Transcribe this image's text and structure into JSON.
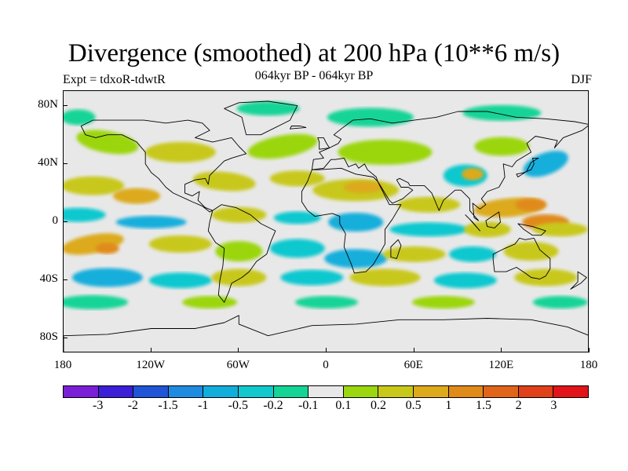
{
  "title": "Divergence (smoothed) at 200 hPa (10**6 m/s)",
  "experiment": "Expt = tdxoR-tdwtR",
  "period": "064kyr BP - 064kyr BP",
  "season": "DJF",
  "map": {
    "projection": "cylindrical equidistant",
    "lon_range": [
      -180,
      180
    ],
    "lat_range": [
      -90,
      90
    ],
    "lat_ticks": [
      {
        "value": 80,
        "label": "80N"
      },
      {
        "value": 40,
        "label": "40N"
      },
      {
        "value": 0,
        "label": "0"
      },
      {
        "value": -40,
        "label": "40S"
      },
      {
        "value": -80,
        "label": "80S"
      }
    ],
    "lon_ticks": [
      {
        "value": -180,
        "label": "180"
      },
      {
        "value": -120,
        "label": "120W"
      },
      {
        "value": -60,
        "label": "60W"
      },
      {
        "value": 0,
        "label": "0"
      },
      {
        "value": 60,
        "label": "60E"
      },
      {
        "value": 120,
        "label": "120E"
      },
      {
        "value": 180,
        "label": "180"
      }
    ],
    "background_color": "#e8e8e8",
    "coastline_color": "#000000"
  },
  "colorbar": {
    "colors": [
      "#7b1fd6",
      "#3b1fd6",
      "#1f55d6",
      "#1f8be0",
      "#12aedb",
      "#11c8cf",
      "#14d496",
      "#e8e8e8",
      "#9bd60e",
      "#c8c81a",
      "#dcaa1a",
      "#e08a1a",
      "#e0651a",
      "#e0401a",
      "#e0141a"
    ],
    "labels": [
      "-3",
      "-2",
      "-1.5",
      "-1",
      "-0.5",
      "-0.2",
      "-0.1",
      "0.1",
      "0.2",
      "0.5",
      "1",
      "1.5",
      "2",
      "3"
    ]
  }
}
